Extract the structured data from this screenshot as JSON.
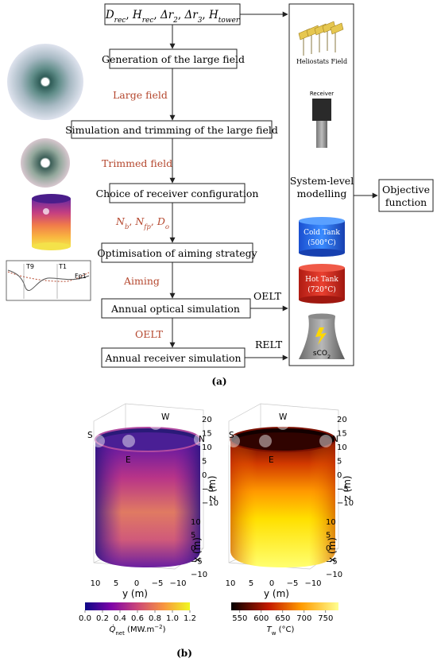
{
  "flow": {
    "inputs": {
      "parts": [
        {
          "base": "D",
          "sub": "rec",
          "after": ", "
        },
        {
          "base": "H",
          "sub": "rec",
          "after": ", "
        },
        {
          "base": "Δr",
          "sub": "2",
          "after": ", "
        },
        {
          "base": "Δr",
          "sub": "3",
          "after": ", "
        },
        {
          "base": "H",
          "sub": "tower",
          "after": ""
        }
      ]
    },
    "steps": {
      "generation": "Generation of the large field",
      "simulation": "Simulation and trimming of the large field",
      "choice": "Choice of receiver configuration",
      "optimisation": "Optimisation of aiming strategy",
      "optical": "Annual optical simulation",
      "receiver_sim": "Annual receiver simulation"
    },
    "labels": {
      "large_field": "Large field",
      "trimmed_field": "Trimmed field",
      "nb_parts": [
        {
          "base": "N",
          "sub": "b",
          "after": ", "
        },
        {
          "base": "N",
          "sub": "fp",
          "after": ", "
        },
        {
          "base": "D",
          "sub": "o",
          "after": ""
        }
      ],
      "aiming": "Aiming",
      "oelt_lower": "OELT",
      "oelt_right": "OELT",
      "relt_right": "RELT"
    },
    "system": {
      "heliostats": "Heliostats Field",
      "receiver": "Receiver",
      "modelling_line1": "System-level",
      "modelling_line2": "modelling",
      "cold_tank_line1": "Cold Tank",
      "cold_tank_line2": "(500°C)",
      "hot_tank_line1": "Hot Tank",
      "hot_tank_line2": "(720°C)",
      "sco2": "sCO",
      "sco2_sub": "2"
    },
    "objective": {
      "line1": "Objective",
      "line2": "function"
    },
    "thumbnail_plot": {
      "labels": [
        "T9",
        "T1",
        "Fp1"
      ]
    },
    "caption": "(a)",
    "colors": {
      "step_label": "#b5482f",
      "cold_tank": "#1f63e6",
      "hot_tank": "#d22a1e"
    }
  },
  "plots": {
    "left": {
      "compass": [
        "W",
        "S",
        "N",
        "E"
      ],
      "x_ticks": [
        "10",
        "5",
        "0",
        "−5",
        "−10"
      ],
      "y_axis_label": "y (m)",
      "z_ticks": [
        "20",
        "15",
        "10",
        "5",
        "0",
        "−5",
        "−10"
      ],
      "z_axis_label": "z (m)",
      "x_depth_ticks": [
        "10",
        "5",
        "0",
        "−5",
        "−10"
      ],
      "x_depth_label": "x (m)",
      "colorbar_ticks": [
        "0.0",
        "0.2",
        "0.4",
        "0.6",
        "0.8",
        "1.0",
        "1.2"
      ],
      "colorbar_label": "Q̇",
      "colorbar_label_sub": "net",
      "colorbar_label_unit": " (MW.m",
      "colorbar_label_sup": "−2",
      "colorbar_label_end": ")"
    },
    "right": {
      "compass": [
        "W",
        "S",
        "N",
        "E"
      ],
      "x_ticks": [
        "10",
        "5",
        "0",
        "−5",
        "−10"
      ],
      "y_axis_label": "y (m)",
      "z_ticks": [
        "20",
        "15",
        "10",
        "5",
        "0",
        "−5",
        "−10"
      ],
      "z_axis_label": "z (m)",
      "x_depth_ticks": [
        "10",
        "5",
        "0",
        "−5",
        "−10"
      ],
      "x_depth_label": "x (m)",
      "colorbar_ticks": [
        "550",
        "600",
        "650",
        "700",
        "750"
      ],
      "colorbar_label": "T",
      "colorbar_label_sub": "w",
      "colorbar_label_unit": " (°C)"
    },
    "caption": "(b)"
  }
}
